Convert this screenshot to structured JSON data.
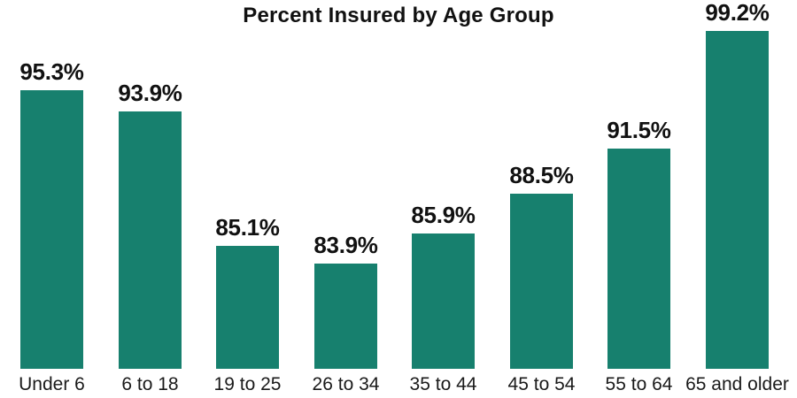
{
  "chart_data": {
    "type": "bar",
    "title": "Percent Insured by Age Group",
    "categories": [
      "Under 6",
      "6 to 18",
      "19 to 25",
      "26 to 34",
      "35 to 44",
      "45 to 54",
      "55 to 64",
      "65 and older"
    ],
    "values": [
      95.3,
      93.9,
      85.1,
      83.9,
      85.9,
      88.5,
      91.5,
      99.2
    ],
    "value_labels": [
      "95.3%",
      "93.9%",
      "85.1%",
      "83.9%",
      "85.9%",
      "88.5%",
      "91.5%",
      "99.2%"
    ],
    "xlabel": "",
    "ylabel": "",
    "ylim": [
      77,
      101
    ],
    "grid": false,
    "legend": "none",
    "bar_color": "#17806e",
    "label_color": "#111111",
    "title_color": "#111111"
  }
}
